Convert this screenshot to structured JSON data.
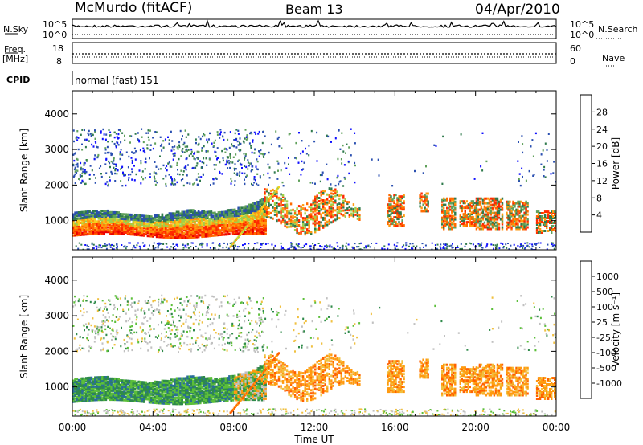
{
  "header": {
    "title": "McMurdo (fitACF)",
    "beam": "Beam 13",
    "date": "04/Apr/2010"
  },
  "status_panels": {
    "nsky_label": "N.Sky",
    "nsearch_label": "N.Search",
    "noise_ticks": [
      "10^5",
      "10^0"
    ],
    "freq_label_1": "Freq.",
    "freq_label_2": "[MHz]",
    "freq_ticks": [
      "18",
      "8"
    ],
    "nave_label": "Nave",
    "nave_ticks": [
      "60",
      "0"
    ],
    "cpid_label": "CPID",
    "cpid_value": "normal (fast) 151"
  },
  "chart_data": [
    {
      "type": "heatmap",
      "panel": "power",
      "ylabel": "Slant Range [km]",
      "xlabel": "Time UT",
      "y_ticks": [
        1000,
        2000,
        3000,
        4000
      ],
      "ylim": [
        180,
        4650
      ],
      "xlim_hours": [
        0,
        24
      ],
      "x_ticks": [
        "00:00",
        "04:00",
        "08:00",
        "12:00",
        "16:00",
        "20:00",
        "00:00"
      ],
      "colorbar": {
        "label": "Power [dB]",
        "ticks": [
          "4",
          "8",
          "12",
          "16",
          "20",
          "24",
          "28"
        ],
        "colors": [
          "#1010ff",
          "#2a4fb0",
          "#2f7a4c",
          "#5fa05a",
          "#9fd04a",
          "#f5d020",
          "#ff9a10",
          "#ff6a00",
          "#ff2a00",
          "#e80000"
        ]
      },
      "description_regions": [
        {
          "t_start": 0.0,
          "t_end": 9.5,
          "range_low": 600,
          "range_high": 1300,
          "value_db": 24
        },
        {
          "t_start": 9.5,
          "t_end": 14.0,
          "range_low": 900,
          "range_high": 2000,
          "value_db": 20
        },
        {
          "t_start": 15.5,
          "t_end": 22.5,
          "range_low": 800,
          "range_high": 1800,
          "value_db": 22
        }
      ]
    },
    {
      "type": "heatmap",
      "panel": "velocity",
      "ylabel": "Slant Range [km]",
      "xlabel": "Time UT",
      "y_ticks": [
        1000,
        2000,
        3000,
        4000
      ],
      "ylim": [
        180,
        4650
      ],
      "xlim_hours": [
        0,
        24
      ],
      "x_ticks": [
        "00:00",
        "04:00",
        "08:00",
        "12:00",
        "16:00",
        "20:00",
        "00:00"
      ],
      "colorbar": {
        "label": "Velocity [m s⁻¹]",
        "ticks": [
          "1000",
          "500",
          "100",
          "25",
          "-25",
          "-100",
          "-500",
          "-1000"
        ],
        "colors": [
          "#1a2fa8",
          "#2a6e9a",
          "#2f8a4a",
          "#5cbf3a",
          "#c0c0c0",
          "#f0c040",
          "#ff9a10",
          "#ff6000",
          "#ff2000"
        ]
      },
      "description_regions": [
        {
          "t_start": 0.0,
          "t_end": 9.5,
          "range_low": 600,
          "range_high": 1300,
          "value_ms": 150
        },
        {
          "t_start": 9.5,
          "t_end": 14.0,
          "range_low": 900,
          "range_high": 2000,
          "value_ms": -300
        },
        {
          "t_start": 15.5,
          "t_end": 22.5,
          "range_low": 800,
          "range_high": 1800,
          "value_ms": -300
        }
      ]
    }
  ]
}
